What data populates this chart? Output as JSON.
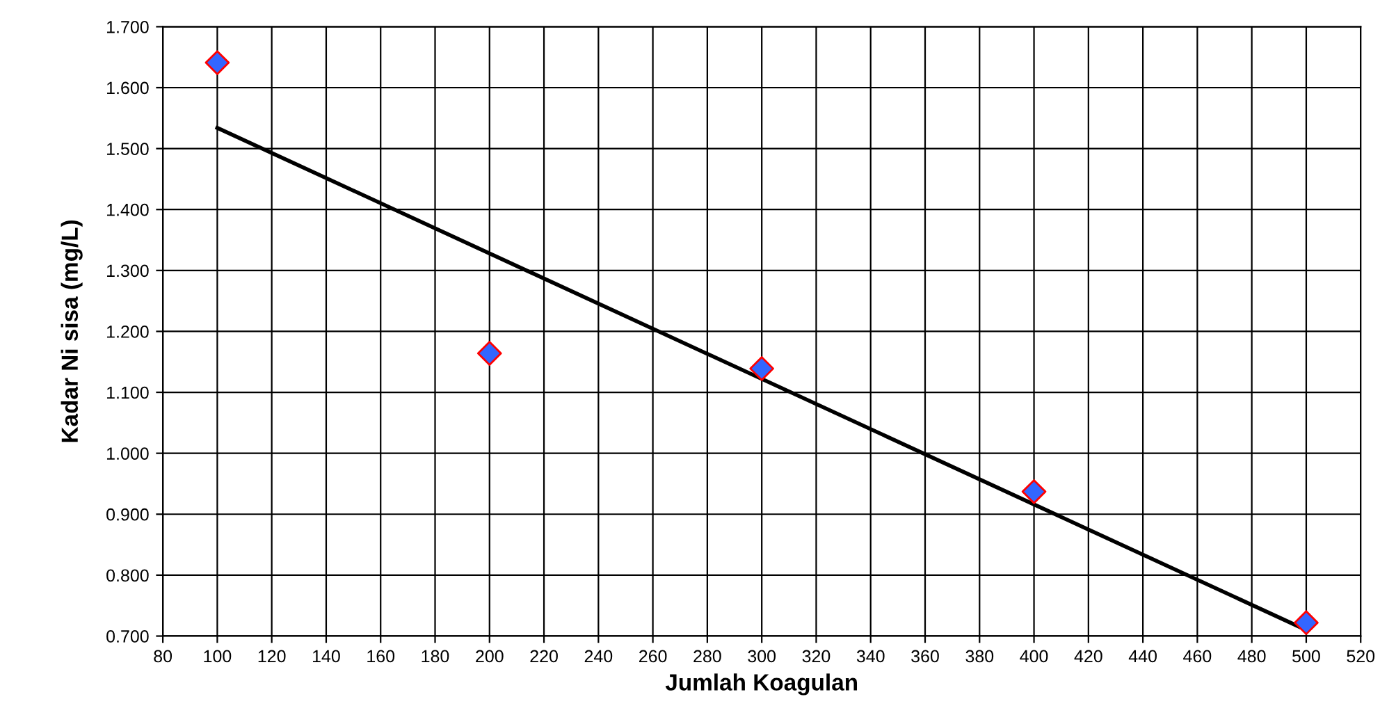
{
  "chart_data": {
    "type": "scatter",
    "xlabel": "Jumlah Koagulan",
    "ylabel": "Kadar Ni sisa (mg/L)",
    "xlim": [
      80,
      520
    ],
    "xticks": [
      80,
      100,
      120,
      140,
      160,
      180,
      200,
      220,
      240,
      260,
      280,
      300,
      320,
      340,
      360,
      380,
      400,
      420,
      440,
      460,
      480,
      500,
      520
    ],
    "ylim": [
      0.7,
      1.7
    ],
    "yticks": [
      {
        "value": 0.7,
        "label": "0.700"
      },
      {
        "value": 0.8,
        "label": "0.800"
      },
      {
        "value": 0.9,
        "label": "0.900"
      },
      {
        "value": 1.0,
        "label": "1.000"
      },
      {
        "value": 1.1,
        "label": "1.100"
      },
      {
        "value": 1.2,
        "label": "1.200"
      },
      {
        "value": 1.3,
        "label": "1.300"
      },
      {
        "value": 1.4,
        "label": "1.400"
      },
      {
        "value": 1.5,
        "label": "1.500"
      },
      {
        "value": 1.6,
        "label": "1.600"
      },
      {
        "value": 1.7,
        "label": "1.700"
      }
    ],
    "grid": true,
    "series": [
      {
        "marker": "diamond",
        "color": "#3366ff",
        "x": [
          100,
          200,
          300,
          400,
          500
        ],
        "values": [
          1.641,
          1.164,
          1.139,
          0.937,
          0.722
        ]
      },
      {
        "type": "line",
        "marker": "none",
        "color": "#000000",
        "x": [
          100,
          500
        ],
        "values": [
          1.534,
          0.71
        ]
      }
    ]
  }
}
